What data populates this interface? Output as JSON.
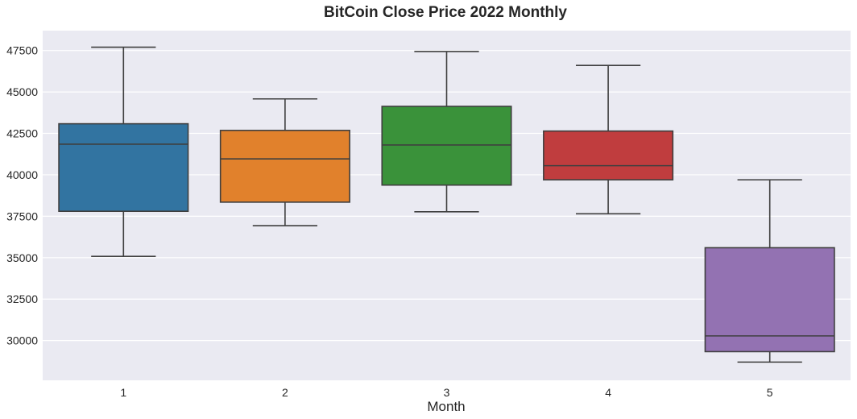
{
  "chart_data": {
    "type": "box",
    "title": "BitCoin Close Price 2022 Monthly",
    "xlabel": "Month",
    "ylabel": "",
    "categories": [
      "1",
      "2",
      "3",
      "4",
      "5"
    ],
    "ylim": [
      27600,
      48700
    ],
    "yticks": [
      30000,
      32500,
      35000,
      37500,
      40000,
      42500,
      45000,
      47500
    ],
    "grid": true,
    "box_stats": [
      {
        "category": "1",
        "whisker_low": 35080,
        "q1": 37800,
        "median": 41850,
        "q3": 43080,
        "whisker_high": 47700,
        "color": "#3274a1"
      },
      {
        "category": "2",
        "whisker_low": 36930,
        "q1": 38350,
        "median": 40960,
        "q3": 42680,
        "whisker_high": 44580,
        "color": "#e1812c"
      },
      {
        "category": "3",
        "whisker_low": 37770,
        "q1": 39380,
        "median": 41800,
        "q3": 44130,
        "whisker_high": 47440,
        "color": "#3a923a"
      },
      {
        "category": "4",
        "whisker_low": 37650,
        "q1": 39700,
        "median": 40550,
        "q3": 42640,
        "whisker_high": 46600,
        "color": "#c03d3e"
      },
      {
        "category": "5",
        "whisker_low": 28700,
        "q1": 29330,
        "median": 30280,
        "q3": 35600,
        "whisker_high": 39700,
        "color": "#9372b2"
      }
    ]
  }
}
